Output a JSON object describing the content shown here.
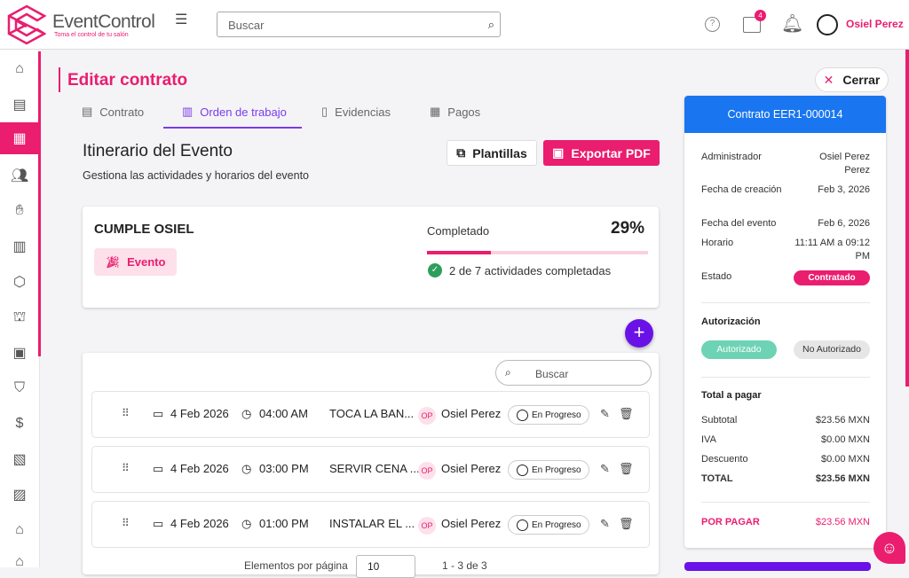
{
  "header": {
    "brand": "EventControl",
    "tagline": "Toma el control de tu salón",
    "search_placeholder": "Buscar",
    "calendar_badge": "4",
    "user_name": "Osiel Perez"
  },
  "sidebar": {
    "items": [
      "home",
      "document",
      "contract",
      "users",
      "handshake",
      "building",
      "box",
      "cake",
      "furniture",
      "basket",
      "money",
      "store",
      "cash",
      "bank",
      "venue"
    ],
    "active_index": 2
  },
  "page": {
    "title": "Editar contrato",
    "close_label": "Cerrar"
  },
  "tabs": [
    {
      "label": "Contrato",
      "active": false
    },
    {
      "label": "Orden de trabajo",
      "active": true
    },
    {
      "label": "Evidencias",
      "active": false
    },
    {
      "label": "Pagos",
      "active": false
    }
  ],
  "itinerary": {
    "title": "Itinerario del Evento",
    "subtitle": "Gestiona las actividades y horarios del evento",
    "templates_label": "Plantillas",
    "export_label": "Exportar PDF"
  },
  "event": {
    "name": "CUMPLE OSIEL",
    "type_label": "Evento",
    "progress_label": "Completado",
    "progress_percent": "29%",
    "progress_value": 29,
    "activities_text": "2 de 7 actividades completadas"
  },
  "list": {
    "search_placeholder": "Buscar",
    "rows": [
      {
        "date": "4 Feb 2026",
        "time": "04:00 AM",
        "title": "TOCA LA BAN...",
        "initials": "OP",
        "assignee": "Osiel Perez",
        "status": "En Progreso"
      },
      {
        "date": "4 Feb 2026",
        "time": "03:00 PM",
        "title": "SERVIR CENA ...",
        "initials": "OP",
        "assignee": "Osiel Perez",
        "status": "En Progreso"
      },
      {
        "date": "4 Feb 2026",
        "time": "01:00 PM",
        "title": "INSTALAR EL ...",
        "initials": "OP",
        "assignee": "Osiel Perez",
        "status": "En Progreso"
      }
    ],
    "per_page_label": "Elementos por página",
    "per_page": "10",
    "range": "1 - 3 de 3"
  },
  "contract": {
    "header": "Contrato EER1-000014",
    "fields": [
      {
        "label": "Administrador",
        "value": "Osiel Perez Perez"
      },
      {
        "label": "Fecha de creación",
        "value": "Feb 3, 2026"
      },
      {
        "label": "Fecha del evento",
        "value": "Feb 6, 2026"
      },
      {
        "label": "Horario",
        "value": "11:11 AM a 09:12 PM"
      },
      {
        "label": "Estado",
        "value": "Contratado"
      }
    ],
    "auth_title": "Autorización",
    "auth_yes": "Autorizado",
    "auth_no": "No Autorizado",
    "total_title": "Total a pagar",
    "totals": [
      {
        "label": "Subtotal",
        "value": "$23.56 MXN"
      },
      {
        "label": "IVA",
        "value": "$0.00 MXN"
      },
      {
        "label": "Descuento",
        "value": "$0.00 MXN"
      },
      {
        "label": "TOTAL",
        "value": "$23.56 MXN"
      }
    ],
    "due_label": "POR PAGAR",
    "due_value": "$23.56 MXN"
  },
  "colors": {
    "brand": "#ea1d6f",
    "accent": "#7c3aed",
    "header_blue": "#1976f0",
    "success": "#2e9e5b"
  }
}
